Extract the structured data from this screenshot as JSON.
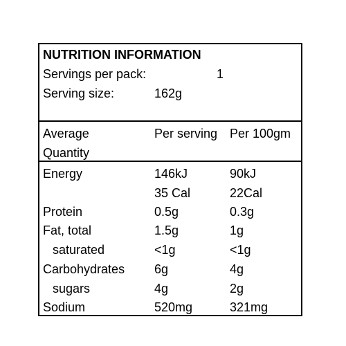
{
  "panel": {
    "title": "NUTRITION INFORMATION",
    "servings_per_pack_label": "Servings per pack:",
    "servings_per_pack_value": "1",
    "serving_size_label": "Serving size:",
    "serving_size_value": "162g"
  },
  "table": {
    "header": {
      "quantity_line1": "Average",
      "quantity_line2": "Quantity",
      "per_serving": "Per serving",
      "per_100": "Per 100gm"
    },
    "rows": [
      {
        "label": "Energy",
        "per_serving": "146kJ",
        "per_100": "90kJ"
      },
      {
        "label": "",
        "per_serving": "35 Cal",
        "per_100": "22Cal"
      },
      {
        "label": "Protein",
        "per_serving": "0.5g",
        "per_100": "0.3g"
      },
      {
        "label": "Fat, total",
        "per_serving": "1.5g",
        "per_100": "1g"
      },
      {
        "label": "saturated",
        "per_serving": "<1g",
        "per_100": "<1g"
      },
      {
        "label": "Carbohydrates",
        "per_serving": "6g",
        "per_100": "4g"
      },
      {
        "label": "sugars",
        "per_serving": "4g",
        "per_100": "2g"
      },
      {
        "label": "Sodium",
        "per_serving": "520mg",
        "per_100": "321mg"
      }
    ]
  }
}
